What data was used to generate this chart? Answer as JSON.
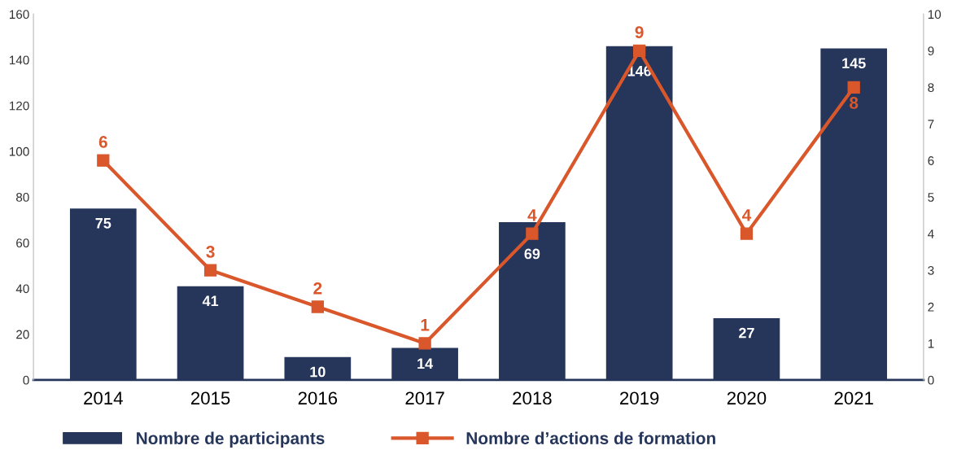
{
  "chart_data": {
    "type": "bar",
    "categories": [
      "2014",
      "2015",
      "2016",
      "2017",
      "2018",
      "2019",
      "2020",
      "2021"
    ],
    "series": [
      {
        "name": "Nombre de participants",
        "color": "#26355a",
        "values": [
          75,
          41,
          10,
          14,
          69,
          146,
          27,
          145
        ]
      },
      {
        "name": "Nombre d’actions de formation",
        "type": "line",
        "axis": "y2",
        "color": "#d9572b",
        "marker": "square",
        "values": [
          6,
          3,
          2,
          1,
          4,
          9,
          4,
          8
        ]
      }
    ],
    "ylim": [
      0,
      160
    ],
    "yticks": [
      0,
      20,
      40,
      60,
      80,
      100,
      120,
      140,
      160
    ],
    "y2lim": [
      0,
      10
    ],
    "y2ticks": [
      0,
      1,
      2,
      3,
      4,
      5,
      6,
      7,
      8,
      9,
      10
    ],
    "data_labels": true,
    "grid": false,
    "legend": "bottom"
  }
}
